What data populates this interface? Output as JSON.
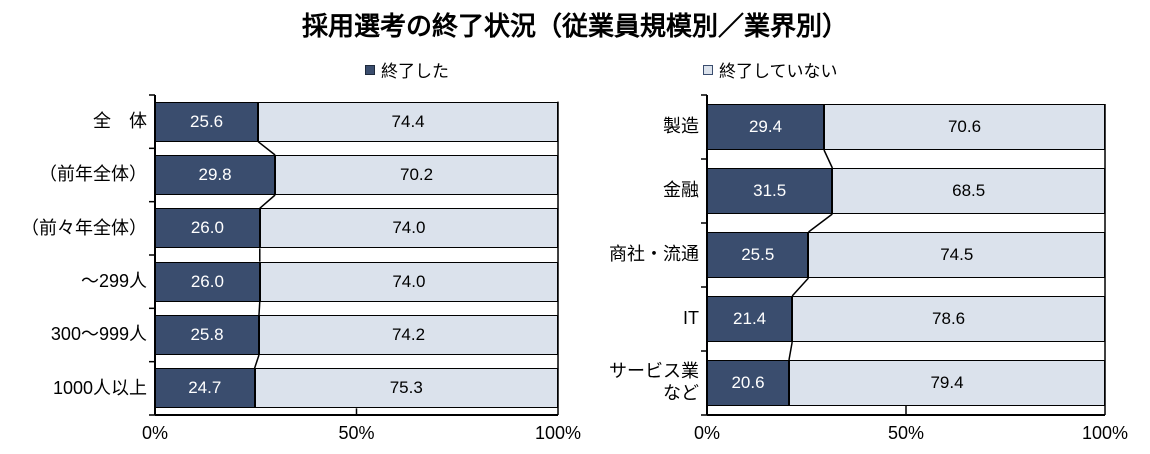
{
  "title": "採用選考の終了状況（従業員規模別／業界別）",
  "legend": {
    "items": [
      {
        "label": "終了した",
        "fill": "#3A4D6E",
        "border": "#1F2A3C"
      },
      {
        "label": "終了していない",
        "fill": "#DBE2EC",
        "border": "#3A4D6E"
      }
    ]
  },
  "colors": {
    "done_fill": "#3A4D6E",
    "done_text": "#FFFFFF",
    "not_done_fill": "#DBE2EC",
    "not_done_text": "#000000",
    "bar_border": "#000000",
    "axis_line": "#000000"
  },
  "chart_data": [
    {
      "type": "bar",
      "orientation": "horizontal",
      "stacked": true,
      "group": "従業員規模別",
      "xlim": [
        0,
        100
      ],
      "xticklabels": [
        "0%",
        "50%",
        "100%"
      ],
      "categories": [
        "全　体",
        "（前年全体）",
        "（前々年全体）",
        "～299人",
        "300～999人",
        "1000人以上"
      ],
      "series": [
        {
          "name": "終了した",
          "values": [
            25.6,
            29.8,
            26.0,
            26.0,
            25.8,
            24.7
          ],
          "labels": [
            "25.6",
            "29.8",
            "26.0",
            "26.0",
            "25.8",
            "24.7"
          ]
        },
        {
          "name": "終了していない",
          "values": [
            74.4,
            70.2,
            74.0,
            74.0,
            74.2,
            75.3
          ],
          "labels": [
            "74.4",
            "70.2",
            "74.0",
            "74.0",
            "74.2",
            "75.3"
          ]
        }
      ]
    },
    {
      "type": "bar",
      "orientation": "horizontal",
      "stacked": true,
      "group": "業界別",
      "xlim": [
        0,
        100
      ],
      "xticklabels": [
        "0%",
        "50%",
        "100%"
      ],
      "categories": [
        "製造",
        "金融",
        "商社・流通",
        "IT",
        "サービス業\nなど"
      ],
      "series": [
        {
          "name": "終了した",
          "values": [
            29.4,
            31.5,
            25.5,
            21.4,
            20.6
          ],
          "labels": [
            "29.4",
            "31.5",
            "25.5",
            "21.4",
            "20.6"
          ]
        },
        {
          "name": "終了していない",
          "values": [
            70.6,
            68.5,
            74.5,
            78.6,
            79.4
          ],
          "labels": [
            "70.6",
            "68.5",
            "74.5",
            "78.6",
            "79.4"
          ]
        }
      ]
    }
  ]
}
